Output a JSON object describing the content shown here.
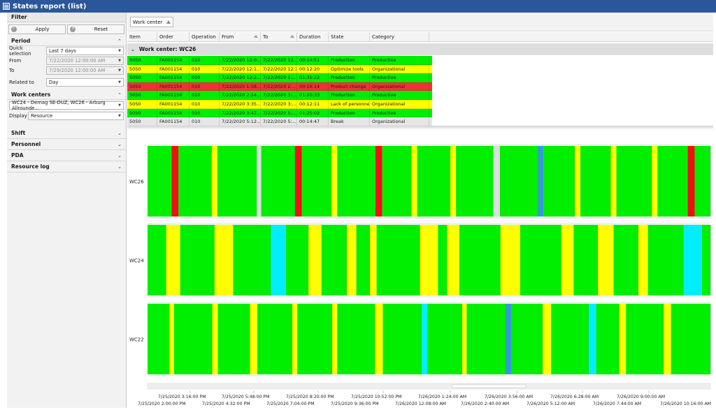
{
  "window": {
    "title": "States report (list)"
  },
  "filter": {
    "title": "Filter",
    "apply_label": "Apply",
    "reset_label": "Reset"
  },
  "period": {
    "title": "Period",
    "quick_selection_label": "Quick selection",
    "quick_selection_value": "Last 7 days",
    "from_label": "From",
    "from_value": "7/22/2020 12:00:00 AM",
    "to_label": "To",
    "to_value": "7/29/2020 12:00:00 AM",
    "related_to_label": "Related to",
    "related_to_value": "Day"
  },
  "work_centers": {
    "title": "Work centers",
    "selection_value": "WC24 - Demag SE-DUZ, WC26 - Arburg Allrounde...",
    "display_label": "Display",
    "display_value": "Resource"
  },
  "collapsed_sections": [
    "Shift",
    "Personnel",
    "PDA",
    "Resource log"
  ],
  "group_chip": {
    "label": "Work center"
  },
  "columns": [
    {
      "label": "Item",
      "w": 43
    },
    {
      "label": "Order",
      "w": 46
    },
    {
      "label": "Operation",
      "w": 43
    },
    {
      "label": "From",
      "w": 59
    },
    {
      "label": "To",
      "w": 52
    },
    {
      "label": "Duration",
      "w": 45
    },
    {
      "label": "State",
      "w": 59
    },
    {
      "label": "Category",
      "w": 85
    }
  ],
  "group": {
    "label": "Work center: WC26"
  },
  "rows": [
    {
      "cells": [
        "5050",
        "FA001154",
        "010",
        "7/22/2020 12:0...",
        "7/22/2020 12...",
        "00:14:51",
        "Production",
        "Productive"
      ],
      "color": "#00ee00"
    },
    {
      "cells": [
        "5050",
        "FA001154",
        "010",
        "7/22/2020 12:1...",
        "7/22/2020 12:1...",
        "00:12:20",
        "Optimize tools",
        "Organizational"
      ],
      "color": "#ffff00"
    },
    {
      "cells": [
        "5050",
        "FA001154",
        "010",
        "7/22/2020 12:2...",
        "7/22/2020 1:...",
        "01:31:22",
        "Production",
        "Productive"
      ],
      "color": "#00ee00"
    },
    {
      "cells": [
        "5050",
        "FA001154",
        "010",
        "7/22/2020 1:58...",
        "7/22/2020 2:...",
        "00:16:14",
        "Product change",
        "Organizational"
      ],
      "color": "#ee3333"
    },
    {
      "cells": [
        "5050",
        "FA001154",
        "010",
        "7/22/2020 2:14...",
        "7/22/2020 3:...",
        "01:20:33",
        "Production",
        "Productive"
      ],
      "color": "#00ee00"
    },
    {
      "cells": [
        "5050",
        "FA001154",
        "010",
        "7/22/2020 3:35...",
        "7/22/2020 3:...",
        "00:12:11",
        "Lack of personnel",
        "Organizational"
      ],
      "color": "#ffff00"
    },
    {
      "cells": [
        "5050",
        "FA001154",
        "010",
        "7/22/2020 3:47...",
        "7/22/2020 5:...",
        "01:25:02",
        "Production",
        "Productive"
      ],
      "color": "#00ee00"
    },
    {
      "cells": [
        "5050",
        "FA001154",
        "010",
        "7/22/2020 5:12...",
        "7/22/2020 5:...",
        "00:14:47",
        "Break",
        "Organizational"
      ],
      "color": "#e6e6e6"
    }
  ],
  "colors": {
    "production": "#00ee00",
    "organizational": "#ffff00",
    "product_change": "#ee1111",
    "break": "#dddddd",
    "cyan_state": "#00eeff",
    "blue_state": "#3399dd",
    "title_bar": "#2b579a"
  },
  "chart_data": {
    "type": "timeline",
    "x_range": [
      "7/25/2020 2:00:00 PM",
      "7/26/2020 10:40:00 AM"
    ],
    "lanes": [
      {
        "name": "WC26",
        "segments": [
          {
            "state": "production",
            "start": 0.0,
            "end": 0.043
          },
          {
            "state": "product_change",
            "start": 0.043,
            "end": 0.055
          },
          {
            "state": "production",
            "start": 0.055,
            "end": 0.114
          },
          {
            "state": "organizational",
            "start": 0.114,
            "end": 0.124
          },
          {
            "state": "production",
            "start": 0.124,
            "end": 0.194
          },
          {
            "state": "break",
            "start": 0.194,
            "end": 0.202
          },
          {
            "state": "production",
            "start": 0.202,
            "end": 0.262
          },
          {
            "state": "product_change",
            "start": 0.262,
            "end": 0.274
          },
          {
            "state": "production",
            "start": 0.274,
            "end": 0.327
          },
          {
            "state": "organizational",
            "start": 0.327,
            "end": 0.337
          },
          {
            "state": "production",
            "start": 0.337,
            "end": 0.405
          },
          {
            "state": "product_change",
            "start": 0.405,
            "end": 0.417
          },
          {
            "state": "production",
            "start": 0.417,
            "end": 0.469
          },
          {
            "state": "organizational",
            "start": 0.469,
            "end": 0.479
          },
          {
            "state": "production",
            "start": 0.479,
            "end": 0.538
          },
          {
            "state": "organizational",
            "start": 0.538,
            "end": 0.548
          },
          {
            "state": "production",
            "start": 0.548,
            "end": 0.614
          },
          {
            "state": "break",
            "start": 0.614,
            "end": 0.626
          },
          {
            "state": "production",
            "start": 0.626,
            "end": 0.694
          },
          {
            "state": "blue_state",
            "start": 0.694,
            "end": 0.704
          },
          {
            "state": "production",
            "start": 0.704,
            "end": 0.759
          },
          {
            "state": "organizational",
            "start": 0.759,
            "end": 0.769
          },
          {
            "state": "production",
            "start": 0.769,
            "end": 0.823
          },
          {
            "state": "organizational",
            "start": 0.823,
            "end": 0.833
          },
          {
            "state": "production",
            "start": 0.833,
            "end": 0.896
          },
          {
            "state": "organizational",
            "start": 0.896,
            "end": 0.906
          },
          {
            "state": "production",
            "start": 0.906,
            "end": 0.96
          },
          {
            "state": "product_change",
            "start": 0.96,
            "end": 0.972
          },
          {
            "state": "production",
            "start": 0.972,
            "end": 1.0
          }
        ]
      },
      {
        "name": "WC24",
        "segments": [
          {
            "state": "production",
            "start": 0.0,
            "end": 0.033
          },
          {
            "state": "organizational",
            "start": 0.033,
            "end": 0.058
          },
          {
            "state": "production",
            "start": 0.058,
            "end": 0.119
          },
          {
            "state": "organizational",
            "start": 0.119,
            "end": 0.152
          },
          {
            "state": "production",
            "start": 0.152,
            "end": 0.219
          },
          {
            "state": "cyan_state",
            "start": 0.219,
            "end": 0.246
          },
          {
            "state": "production",
            "start": 0.246,
            "end": 0.286
          },
          {
            "state": "organizational",
            "start": 0.286,
            "end": 0.309
          },
          {
            "state": "production",
            "start": 0.309,
            "end": 0.354
          },
          {
            "state": "organizational",
            "start": 0.354,
            "end": 0.371
          },
          {
            "state": "production",
            "start": 0.371,
            "end": 0.395
          },
          {
            "state": "organizational",
            "start": 0.395,
            "end": 0.407
          },
          {
            "state": "production",
            "start": 0.407,
            "end": 0.484
          },
          {
            "state": "organizational",
            "start": 0.484,
            "end": 0.516
          },
          {
            "state": "production",
            "start": 0.516,
            "end": 0.532
          },
          {
            "state": "organizational",
            "start": 0.532,
            "end": 0.554
          },
          {
            "state": "production",
            "start": 0.554,
            "end": 0.627
          },
          {
            "state": "organizational",
            "start": 0.627,
            "end": 0.662
          },
          {
            "state": "production",
            "start": 0.662,
            "end": 0.735
          },
          {
            "state": "organizational",
            "start": 0.735,
            "end": 0.757
          },
          {
            "state": "production",
            "start": 0.757,
            "end": 0.8
          },
          {
            "state": "organizational",
            "start": 0.8,
            "end": 0.828
          },
          {
            "state": "production",
            "start": 0.828,
            "end": 0.872
          },
          {
            "state": "organizational",
            "start": 0.872,
            "end": 0.889
          },
          {
            "state": "production",
            "start": 0.889,
            "end": 0.952
          },
          {
            "state": "cyan_state",
            "start": 0.952,
            "end": 0.985
          },
          {
            "state": "production",
            "start": 0.985,
            "end": 1.0
          }
        ]
      },
      {
        "name": "WC22",
        "segments": [
          {
            "state": "production",
            "start": 0.0,
            "end": 0.039
          },
          {
            "state": "organizational",
            "start": 0.039,
            "end": 0.047
          },
          {
            "state": "production",
            "start": 0.047,
            "end": 0.115
          },
          {
            "state": "organizational",
            "start": 0.115,
            "end": 0.125
          },
          {
            "state": "production",
            "start": 0.125,
            "end": 0.182
          },
          {
            "state": "organizational",
            "start": 0.182,
            "end": 0.195
          },
          {
            "state": "production",
            "start": 0.195,
            "end": 0.257
          },
          {
            "state": "organizational",
            "start": 0.257,
            "end": 0.266
          },
          {
            "state": "production",
            "start": 0.266,
            "end": 0.328
          },
          {
            "state": "organizational",
            "start": 0.328,
            "end": 0.337
          },
          {
            "state": "production",
            "start": 0.337,
            "end": 0.404
          },
          {
            "state": "organizational",
            "start": 0.404,
            "end": 0.418
          },
          {
            "state": "production",
            "start": 0.418,
            "end": 0.487
          },
          {
            "state": "cyan_state",
            "start": 0.487,
            "end": 0.497
          },
          {
            "state": "production",
            "start": 0.497,
            "end": 0.559
          },
          {
            "state": "organizational",
            "start": 0.559,
            "end": 0.567
          },
          {
            "state": "production",
            "start": 0.567,
            "end": 0.637
          },
          {
            "state": "blue_state",
            "start": 0.637,
            "end": 0.647
          },
          {
            "state": "production",
            "start": 0.647,
            "end": 0.702
          },
          {
            "state": "organizational",
            "start": 0.702,
            "end": 0.717
          },
          {
            "state": "production",
            "start": 0.717,
            "end": 0.784
          },
          {
            "state": "cyan_state",
            "start": 0.784,
            "end": 0.797
          },
          {
            "state": "production",
            "start": 0.797,
            "end": 0.838
          },
          {
            "state": "organizational",
            "start": 0.838,
            "end": 0.85
          },
          {
            "state": "production",
            "start": 0.85,
            "end": 0.917
          },
          {
            "state": "organizational",
            "start": 0.917,
            "end": 0.93
          },
          {
            "state": "production",
            "start": 0.93,
            "end": 1.0
          }
        ]
      }
    ],
    "ticks_top": [
      "7/25/2020 3:16:00 PM",
      "7/25/2020 5:48:00 PM",
      "7/25/2020 8:20:00 PM",
      "7/25/2020 10:52:00 PM",
      "7/26/2020 1:24:00 AM",
      "7/26/2020 3:56:00 AM",
      "7/26/2020 6:28:00 AM",
      "7/26/2020 9:00:00 AM"
    ],
    "ticks_bottom": [
      "7/25/2020 2:00:00 PM",
      "7/25/2020 4:32:00 PM",
      "7/25/2020 7:04:00 PM",
      "7/25/2020 9:36:00 PM",
      "7/26/2020 12:08:00 AM",
      "7/26/2020 2:40:00 AM",
      "7/26/2020 5:12:00 AM",
      "7/26/2020 7:44:00 AM",
      "7/26/2020 10:16:00 AM"
    ]
  }
}
